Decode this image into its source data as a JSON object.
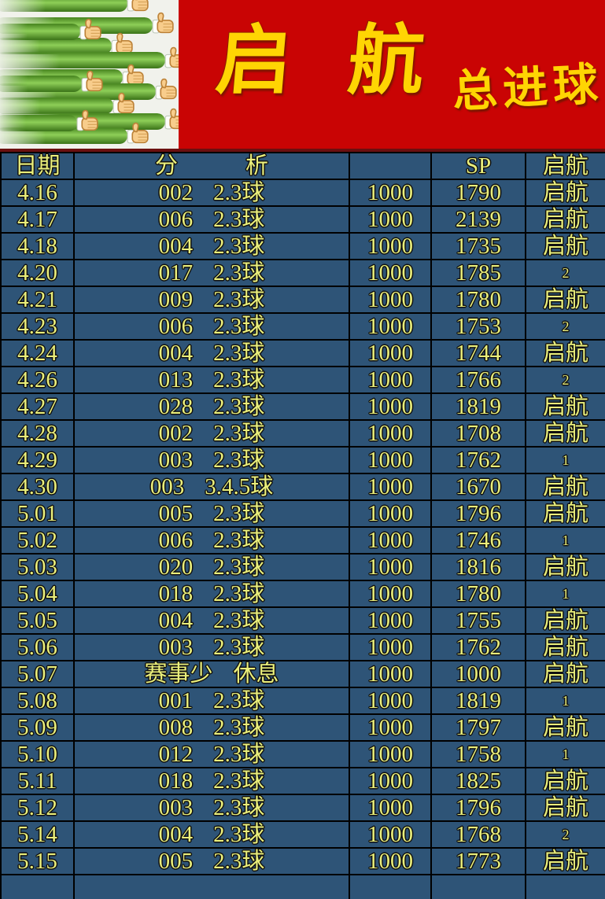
{
  "banner": {
    "title_left": "启",
    "title_right": "航",
    "subtitle": "总进球",
    "decoration_icon": "thumbs-up-icon"
  },
  "table": {
    "headers": {
      "date": "日期",
      "analysis_left": "分",
      "analysis_right": "析",
      "stake": "",
      "sp": "SP",
      "result": "启航"
    },
    "rows": [
      {
        "date": "4.16",
        "code": "002",
        "pick": "2.3球",
        "stake": "1000",
        "sp": "1790",
        "result": "启航"
      },
      {
        "date": "4.17",
        "code": "006",
        "pick": "2.3球",
        "stake": "1000",
        "sp": "2139",
        "result": "启航"
      },
      {
        "date": "4.18",
        "code": "004",
        "pick": "2.3球",
        "stake": "1000",
        "sp": "1735",
        "result": "启航"
      },
      {
        "date": "4.20",
        "code": "017",
        "pick": "2.3球",
        "stake": "1000",
        "sp": "1785",
        "result": "2"
      },
      {
        "date": "4.21",
        "code": "009",
        "pick": "2.3球",
        "stake": "1000",
        "sp": "1780",
        "result": "启航"
      },
      {
        "date": "4.23",
        "code": "006",
        "pick": "2.3球",
        "stake": "1000",
        "sp": "1753",
        "result": "2"
      },
      {
        "date": "4.24",
        "code": "004",
        "pick": "2.3球",
        "stake": "1000",
        "sp": "1744",
        "result": "启航"
      },
      {
        "date": "4.26",
        "code": "013",
        "pick": "2.3球",
        "stake": "1000",
        "sp": "1766",
        "result": "2"
      },
      {
        "date": "4.27",
        "code": "028",
        "pick": "2.3球",
        "stake": "1000",
        "sp": "1819",
        "result": "启航"
      },
      {
        "date": "4.28",
        "code": "002",
        "pick": "2.3球",
        "stake": "1000",
        "sp": "1708",
        "result": "启航"
      },
      {
        "date": "4.29",
        "code": "003",
        "pick": "2.3球",
        "stake": "1000",
        "sp": "1762",
        "result": "1"
      },
      {
        "date": "4.30",
        "code": "003",
        "pick": "3.4.5球",
        "stake": "1000",
        "sp": "1670",
        "result": "启航"
      },
      {
        "date": "5.01",
        "code": "005",
        "pick": "2.3球",
        "stake": "1000",
        "sp": "1796",
        "result": "启航"
      },
      {
        "date": "5.02",
        "code": "006",
        "pick": "2.3球",
        "stake": "1000",
        "sp": "1746",
        "result": "1"
      },
      {
        "date": "5.03",
        "code": "020",
        "pick": "2.3球",
        "stake": "1000",
        "sp": "1816",
        "result": "启航"
      },
      {
        "date": "5.04",
        "code": "018",
        "pick": "2.3球",
        "stake": "1000",
        "sp": "1780",
        "result": "1"
      },
      {
        "date": "5.05",
        "code": "004",
        "pick": "2.3球",
        "stake": "1000",
        "sp": "1755",
        "result": "启航"
      },
      {
        "date": "5.06",
        "code": "003",
        "pick": "2.3球",
        "stake": "1000",
        "sp": "1762",
        "result": "启航"
      },
      {
        "date": "5.07",
        "code": "赛事少",
        "pick": "休息",
        "stake": "1000",
        "sp": "1000",
        "result": "启航"
      },
      {
        "date": "5.08",
        "code": "001",
        "pick": "2.3球",
        "stake": "1000",
        "sp": "1819",
        "result": "1"
      },
      {
        "date": "5.09",
        "code": "008",
        "pick": "2.3球",
        "stake": "1000",
        "sp": "1797",
        "result": "启航"
      },
      {
        "date": "5.10",
        "code": "012",
        "pick": "2.3球",
        "stake": "1000",
        "sp": "1758",
        "result": "1"
      },
      {
        "date": "5.11",
        "code": "018",
        "pick": "2.3球",
        "stake": "1000",
        "sp": "1825",
        "result": "启航"
      },
      {
        "date": "5.12",
        "code": "003",
        "pick": "2.3球",
        "stake": "1000",
        "sp": "1796",
        "result": "启航"
      },
      {
        "date": "5.14",
        "code": "004",
        "pick": "2.3球",
        "stake": "1000",
        "sp": "1768",
        "result": "2"
      },
      {
        "date": "5.15",
        "code": "005",
        "pick": "2.3球",
        "stake": "1000",
        "sp": "1773",
        "result": "启航"
      },
      {
        "date": "",
        "code": "",
        "pick": "",
        "stake": "",
        "sp": "",
        "result": ""
      }
    ]
  },
  "colors": {
    "banner_red": "#c90404",
    "banner_gold": "#ffd503",
    "table_background": "#2e5477",
    "cell_text": "#eaef7b",
    "grid": "#000000"
  }
}
